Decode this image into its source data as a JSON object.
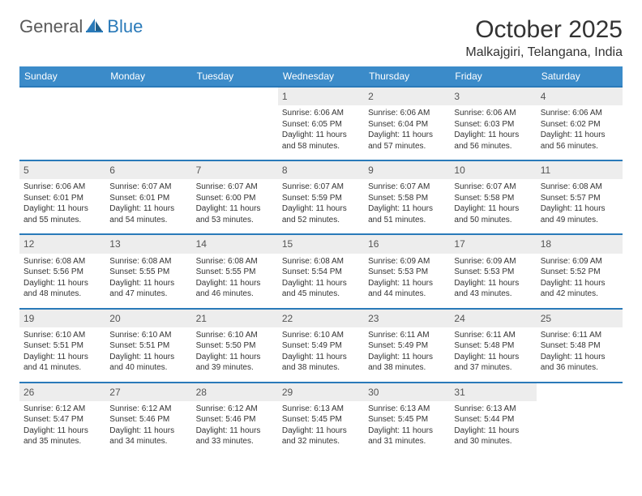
{
  "brand": {
    "part1": "General",
    "part2": "Blue"
  },
  "title": "October 2025",
  "location": "Malkajgiri, Telangana, India",
  "colors": {
    "header_bg": "#3b8bc9",
    "header_text": "#ffffff",
    "week_border": "#2a7ab9",
    "daynum_bg": "#ededed",
    "text": "#333333",
    "logo_gray": "#5a5a5a",
    "logo_blue": "#2a7ab9",
    "page_bg": "#ffffff"
  },
  "typography": {
    "title_fontsize": 30,
    "location_fontsize": 16,
    "header_fontsize": 12,
    "daynum_fontsize": 12,
    "body_fontsize": 10
  },
  "day_headers": [
    "Sunday",
    "Monday",
    "Tuesday",
    "Wednesday",
    "Thursday",
    "Friday",
    "Saturday"
  ],
  "weeks": [
    [
      {
        "blank": true
      },
      {
        "blank": true
      },
      {
        "blank": true
      },
      {
        "n": "1",
        "sr": "Sunrise: 6:06 AM",
        "ss": "Sunset: 6:05 PM",
        "dl1": "Daylight: 11 hours",
        "dl2": "and 58 minutes."
      },
      {
        "n": "2",
        "sr": "Sunrise: 6:06 AM",
        "ss": "Sunset: 6:04 PM",
        "dl1": "Daylight: 11 hours",
        "dl2": "and 57 minutes."
      },
      {
        "n": "3",
        "sr": "Sunrise: 6:06 AM",
        "ss": "Sunset: 6:03 PM",
        "dl1": "Daylight: 11 hours",
        "dl2": "and 56 minutes."
      },
      {
        "n": "4",
        "sr": "Sunrise: 6:06 AM",
        "ss": "Sunset: 6:02 PM",
        "dl1": "Daylight: 11 hours",
        "dl2": "and 56 minutes."
      }
    ],
    [
      {
        "n": "5",
        "sr": "Sunrise: 6:06 AM",
        "ss": "Sunset: 6:01 PM",
        "dl1": "Daylight: 11 hours",
        "dl2": "and 55 minutes."
      },
      {
        "n": "6",
        "sr": "Sunrise: 6:07 AM",
        "ss": "Sunset: 6:01 PM",
        "dl1": "Daylight: 11 hours",
        "dl2": "and 54 minutes."
      },
      {
        "n": "7",
        "sr": "Sunrise: 6:07 AM",
        "ss": "Sunset: 6:00 PM",
        "dl1": "Daylight: 11 hours",
        "dl2": "and 53 minutes."
      },
      {
        "n": "8",
        "sr": "Sunrise: 6:07 AM",
        "ss": "Sunset: 5:59 PM",
        "dl1": "Daylight: 11 hours",
        "dl2": "and 52 minutes."
      },
      {
        "n": "9",
        "sr": "Sunrise: 6:07 AM",
        "ss": "Sunset: 5:58 PM",
        "dl1": "Daylight: 11 hours",
        "dl2": "and 51 minutes."
      },
      {
        "n": "10",
        "sr": "Sunrise: 6:07 AM",
        "ss": "Sunset: 5:58 PM",
        "dl1": "Daylight: 11 hours",
        "dl2": "and 50 minutes."
      },
      {
        "n": "11",
        "sr": "Sunrise: 6:08 AM",
        "ss": "Sunset: 5:57 PM",
        "dl1": "Daylight: 11 hours",
        "dl2": "and 49 minutes."
      }
    ],
    [
      {
        "n": "12",
        "sr": "Sunrise: 6:08 AM",
        "ss": "Sunset: 5:56 PM",
        "dl1": "Daylight: 11 hours",
        "dl2": "and 48 minutes."
      },
      {
        "n": "13",
        "sr": "Sunrise: 6:08 AM",
        "ss": "Sunset: 5:55 PM",
        "dl1": "Daylight: 11 hours",
        "dl2": "and 47 minutes."
      },
      {
        "n": "14",
        "sr": "Sunrise: 6:08 AM",
        "ss": "Sunset: 5:55 PM",
        "dl1": "Daylight: 11 hours",
        "dl2": "and 46 minutes."
      },
      {
        "n": "15",
        "sr": "Sunrise: 6:08 AM",
        "ss": "Sunset: 5:54 PM",
        "dl1": "Daylight: 11 hours",
        "dl2": "and 45 minutes."
      },
      {
        "n": "16",
        "sr": "Sunrise: 6:09 AM",
        "ss": "Sunset: 5:53 PM",
        "dl1": "Daylight: 11 hours",
        "dl2": "and 44 minutes."
      },
      {
        "n": "17",
        "sr": "Sunrise: 6:09 AM",
        "ss": "Sunset: 5:53 PM",
        "dl1": "Daylight: 11 hours",
        "dl2": "and 43 minutes."
      },
      {
        "n": "18",
        "sr": "Sunrise: 6:09 AM",
        "ss": "Sunset: 5:52 PM",
        "dl1": "Daylight: 11 hours",
        "dl2": "and 42 minutes."
      }
    ],
    [
      {
        "n": "19",
        "sr": "Sunrise: 6:10 AM",
        "ss": "Sunset: 5:51 PM",
        "dl1": "Daylight: 11 hours",
        "dl2": "and 41 minutes."
      },
      {
        "n": "20",
        "sr": "Sunrise: 6:10 AM",
        "ss": "Sunset: 5:51 PM",
        "dl1": "Daylight: 11 hours",
        "dl2": "and 40 minutes."
      },
      {
        "n": "21",
        "sr": "Sunrise: 6:10 AM",
        "ss": "Sunset: 5:50 PM",
        "dl1": "Daylight: 11 hours",
        "dl2": "and 39 minutes."
      },
      {
        "n": "22",
        "sr": "Sunrise: 6:10 AM",
        "ss": "Sunset: 5:49 PM",
        "dl1": "Daylight: 11 hours",
        "dl2": "and 38 minutes."
      },
      {
        "n": "23",
        "sr": "Sunrise: 6:11 AM",
        "ss": "Sunset: 5:49 PM",
        "dl1": "Daylight: 11 hours",
        "dl2": "and 38 minutes."
      },
      {
        "n": "24",
        "sr": "Sunrise: 6:11 AM",
        "ss": "Sunset: 5:48 PM",
        "dl1": "Daylight: 11 hours",
        "dl2": "and 37 minutes."
      },
      {
        "n": "25",
        "sr": "Sunrise: 6:11 AM",
        "ss": "Sunset: 5:48 PM",
        "dl1": "Daylight: 11 hours",
        "dl2": "and 36 minutes."
      }
    ],
    [
      {
        "n": "26",
        "sr": "Sunrise: 6:12 AM",
        "ss": "Sunset: 5:47 PM",
        "dl1": "Daylight: 11 hours",
        "dl2": "and 35 minutes."
      },
      {
        "n": "27",
        "sr": "Sunrise: 6:12 AM",
        "ss": "Sunset: 5:46 PM",
        "dl1": "Daylight: 11 hours",
        "dl2": "and 34 minutes."
      },
      {
        "n": "28",
        "sr": "Sunrise: 6:12 AM",
        "ss": "Sunset: 5:46 PM",
        "dl1": "Daylight: 11 hours",
        "dl2": "and 33 minutes."
      },
      {
        "n": "29",
        "sr": "Sunrise: 6:13 AM",
        "ss": "Sunset: 5:45 PM",
        "dl1": "Daylight: 11 hours",
        "dl2": "and 32 minutes."
      },
      {
        "n": "30",
        "sr": "Sunrise: 6:13 AM",
        "ss": "Sunset: 5:45 PM",
        "dl1": "Daylight: 11 hours",
        "dl2": "and 31 minutes."
      },
      {
        "n": "31",
        "sr": "Sunrise: 6:13 AM",
        "ss": "Sunset: 5:44 PM",
        "dl1": "Daylight: 11 hours",
        "dl2": "and 30 minutes."
      },
      {
        "blank": true
      }
    ]
  ]
}
